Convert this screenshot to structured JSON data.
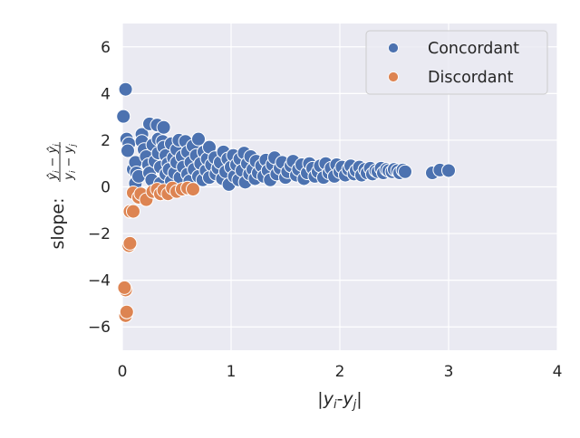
{
  "chart_data": {
    "type": "scatter",
    "title": "",
    "xlabel": "|y_i - y_j|",
    "ylabel": "slope: (ŷ_i − ŷ_j) / (y_i − y_j)",
    "xlim": [
      0,
      4
    ],
    "ylim": [
      -7,
      7
    ],
    "x_ticks": [
      0,
      1,
      2,
      3,
      4
    ],
    "x_tick_labels": [
      "0",
      "1",
      "2",
      "3",
      "4"
    ],
    "y_ticks": [
      -6,
      -4,
      -2,
      0,
      2,
      4,
      6
    ],
    "y_tick_labels": [
      "−6",
      "−4",
      "−2",
      "0",
      "2",
      "4",
      "6"
    ],
    "grid": true,
    "legend_position": "top-right",
    "background_color": "#eaeaf2",
    "series": [
      {
        "name": "Concordant",
        "color": "#4c72b0",
        "points": [
          [
            0.03,
            4.18
          ],
          [
            0.01,
            3.02
          ],
          [
            0.04,
            2.05
          ],
          [
            0.06,
            1.85
          ],
          [
            0.05,
            1.55
          ],
          [
            0.1,
            0.75
          ],
          [
            0.12,
            1.05
          ],
          [
            0.13,
            0.6
          ],
          [
            0.12,
            0.15
          ],
          [
            0.15,
            0.45
          ],
          [
            0.18,
            2.25
          ],
          [
            0.18,
            1.95
          ],
          [
            0.2,
            1.6
          ],
          [
            0.22,
            1.3
          ],
          [
            0.24,
            0.95
          ],
          [
            0.25,
            2.7
          ],
          [
            0.25,
            0.6
          ],
          [
            0.27,
            0.3
          ],
          [
            0.28,
            1.8
          ],
          [
            0.3,
            1.1
          ],
          [
            0.32,
            2.65
          ],
          [
            0.33,
            2.05
          ],
          [
            0.33,
            1.45
          ],
          [
            0.35,
            0.85
          ],
          [
            0.35,
            0.15
          ],
          [
            0.37,
            1.95
          ],
          [
            0.38,
            1.7
          ],
          [
            0.38,
            2.55
          ],
          [
            0.4,
            1.35
          ],
          [
            0.4,
            0.55
          ],
          [
            0.42,
            1.0
          ],
          [
            0.43,
            0.75
          ],
          [
            0.45,
            1.85
          ],
          [
            0.45,
            0.25
          ],
          [
            0.47,
            1.25
          ],
          [
            0.48,
            0.6
          ],
          [
            0.5,
            1.6
          ],
          [
            0.5,
            1.05
          ],
          [
            0.52,
            2.0
          ],
          [
            0.53,
            0.4
          ],
          [
            0.55,
            1.3
          ],
          [
            0.56,
            0.85
          ],
          [
            0.58,
            1.95
          ],
          [
            0.6,
            1.5
          ],
          [
            0.6,
            0.55
          ],
          [
            0.62,
            0.25
          ],
          [
            0.63,
            1.05
          ],
          [
            0.65,
            1.75
          ],
          [
            0.66,
            0.75
          ],
          [
            0.68,
            1.35
          ],
          [
            0.7,
            2.05
          ],
          [
            0.7,
            0.45
          ],
          [
            0.72,
            1.0
          ],
          [
            0.74,
            0.3
          ],
          [
            0.75,
            1.5
          ],
          [
            0.77,
            0.7
          ],
          [
            0.78,
            1.2
          ],
          [
            0.8,
            1.7
          ],
          [
            0.8,
            0.4
          ],
          [
            0.82,
            0.95
          ],
          [
            0.85,
            1.25
          ],
          [
            0.86,
            0.55
          ],
          [
            0.88,
            0.8
          ],
          [
            0.9,
            1.05
          ],
          [
            0.92,
            0.35
          ],
          [
            0.93,
            1.5
          ],
          [
            0.95,
            0.65
          ],
          [
            0.97,
            1.2
          ],
          [
            0.98,
            0.1
          ],
          [
            1.0,
            0.85
          ],
          [
            1.02,
            1.35
          ],
          [
            1.03,
            0.45
          ],
          [
            1.05,
            0.95
          ],
          [
            1.07,
            0.3
          ],
          [
            1.08,
            1.2
          ],
          [
            1.1,
            0.7
          ],
          [
            1.12,
            1.45
          ],
          [
            1.13,
            0.2
          ],
          [
            1.15,
            1.0
          ],
          [
            1.17,
            0.55
          ],
          [
            1.18,
            1.3
          ],
          [
            1.2,
            0.75
          ],
          [
            1.22,
            0.35
          ],
          [
            1.23,
            1.1
          ],
          [
            1.25,
            0.6
          ],
          [
            1.28,
            0.9
          ],
          [
            1.3,
            0.45
          ],
          [
            1.32,
            1.15
          ],
          [
            1.34,
            0.7
          ],
          [
            1.36,
            0.3
          ],
          [
            1.38,
            0.95
          ],
          [
            1.4,
            1.25
          ],
          [
            1.42,
            0.55
          ],
          [
            1.45,
            0.8
          ],
          [
            1.47,
            1.05
          ],
          [
            1.5,
            0.4
          ],
          [
            1.52,
            0.65
          ],
          [
            1.55,
            0.9
          ],
          [
            1.57,
            1.1
          ],
          [
            1.6,
            0.5
          ],
          [
            1.62,
            0.75
          ],
          [
            1.65,
            0.95
          ],
          [
            1.67,
            0.35
          ],
          [
            1.7,
            0.6
          ],
          [
            1.72,
            1.0
          ],
          [
            1.75,
            0.8
          ],
          [
            1.77,
            0.45
          ],
          [
            1.8,
            0.65
          ],
          [
            1.82,
            0.9
          ],
          [
            1.85,
            0.4
          ],
          [
            1.87,
            1.0
          ],
          [
            1.9,
            0.6
          ],
          [
            1.92,
            0.8
          ],
          [
            1.95,
            0.45
          ],
          [
            1.97,
            0.95
          ],
          [
            2.0,
            0.65
          ],
          [
            2.02,
            0.85
          ],
          [
            2.05,
            0.5
          ],
          [
            2.08,
            0.75
          ],
          [
            2.1,
            0.9
          ],
          [
            2.13,
            0.55
          ],
          [
            2.15,
            0.7
          ],
          [
            2.18,
            0.85
          ],
          [
            2.2,
            0.5
          ],
          [
            2.23,
            0.75
          ],
          [
            2.25,
            0.6
          ],
          [
            2.28,
            0.8
          ],
          [
            2.3,
            0.55
          ],
          [
            2.33,
            0.7
          ],
          [
            2.35,
            0.65
          ],
          [
            2.38,
            0.8
          ],
          [
            2.4,
            0.6
          ],
          [
            2.43,
            0.75
          ],
          [
            2.45,
            0.7
          ],
          [
            2.48,
            0.65
          ],
          [
            2.5,
            0.75
          ],
          [
            2.53,
            0.7
          ],
          [
            2.55,
            0.6
          ],
          [
            2.58,
            0.72
          ],
          [
            2.6,
            0.65
          ],
          [
            2.85,
            0.6
          ],
          [
            2.92,
            0.72
          ],
          [
            3.0,
            0.7
          ]
        ]
      },
      {
        "name": "Discordant",
        "color": "#dd8452",
        "points": [
          [
            0.03,
            -5.52
          ],
          [
            0.04,
            -5.36
          ],
          [
            0.03,
            -4.42
          ],
          [
            0.02,
            -4.32
          ],
          [
            0.06,
            -2.52
          ],
          [
            0.07,
            -2.42
          ],
          [
            0.07,
            -1.05
          ],
          [
            0.1,
            -1.05
          ],
          [
            0.1,
            -0.25
          ],
          [
            0.15,
            -0.45
          ],
          [
            0.17,
            -0.3
          ],
          [
            0.22,
            -0.55
          ],
          [
            0.28,
            -0.2
          ],
          [
            0.32,
            -0.1
          ],
          [
            0.35,
            -0.3
          ],
          [
            0.38,
            -0.15
          ],
          [
            0.42,
            -0.3
          ],
          [
            0.46,
            -0.05
          ],
          [
            0.5,
            -0.2
          ],
          [
            0.55,
            -0.1
          ],
          [
            0.6,
            -0.05
          ],
          [
            0.65,
            -0.1
          ]
        ]
      }
    ]
  }
}
